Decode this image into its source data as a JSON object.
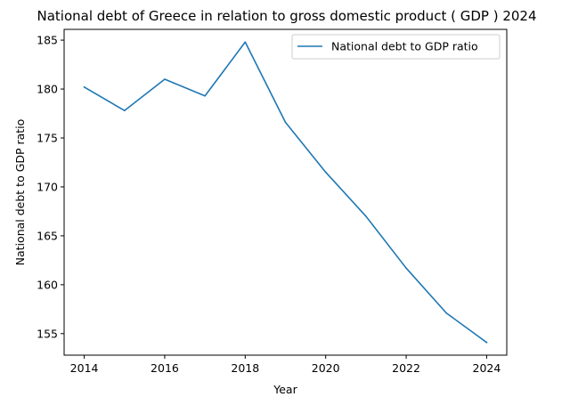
{
  "chart_data": {
    "type": "line",
    "title": "National debt of Greece in relation to gross domestic product ( GDP ) 2024",
    "xlabel": "Year",
    "ylabel": "National debt to GDP ratio",
    "x": [
      2014,
      2015,
      2016,
      2017,
      2018,
      2019,
      2020,
      2021,
      2022,
      2023,
      2024
    ],
    "series": [
      {
        "name": "National debt to GDP ratio",
        "color": "#1f77b4",
        "values": [
          180.2,
          177.8,
          181.0,
          179.3,
          184.8,
          176.6,
          171.5,
          167.0,
          161.7,
          157.1,
          154.1
        ]
      }
    ],
    "xticks": [
      2014,
      2016,
      2018,
      2020,
      2022,
      2024
    ],
    "yticks": [
      155,
      160,
      165,
      170,
      175,
      180,
      185
    ],
    "xlim": [
      2013.5,
      2024.5
    ],
    "ylim": [
      152.8,
      186.1
    ],
    "legend_position": "top-right",
    "grid": false
  }
}
